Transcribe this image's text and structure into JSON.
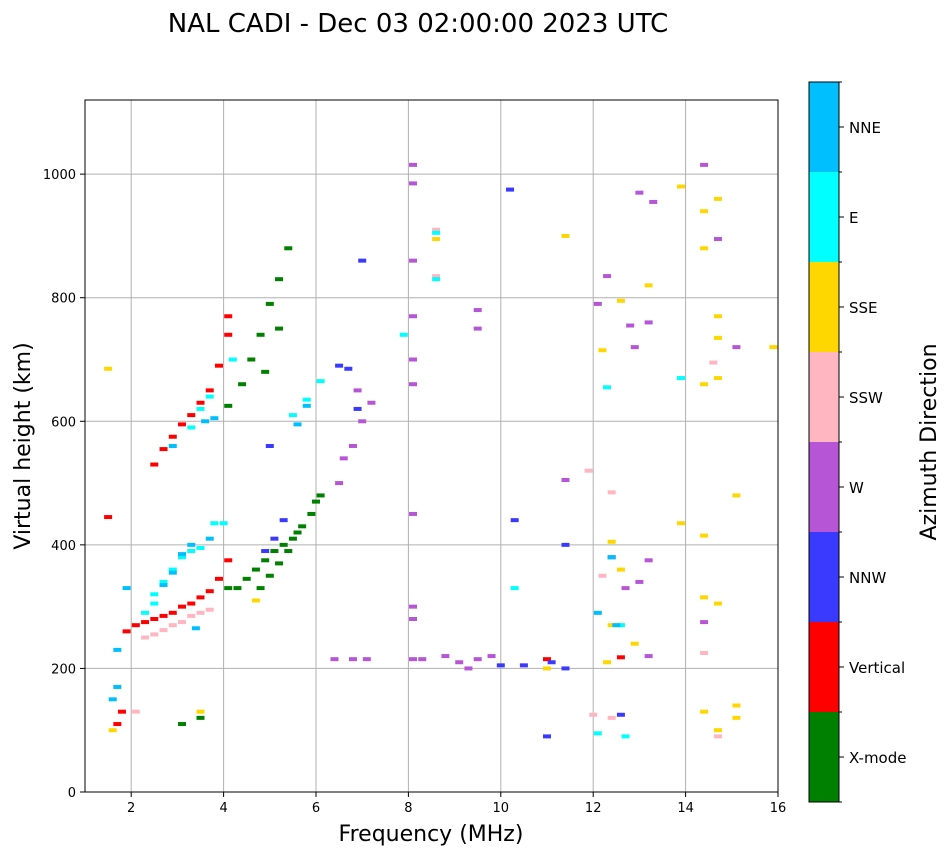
{
  "chart_data": {
    "type": "scatter",
    "title": "NAL CADI - Dec 03 02:00:00 2023 UTC",
    "xlabel": "Frequency (MHz)",
    "ylabel": "Virtual height (km)",
    "xlim": [
      1,
      16
    ],
    "ylim": [
      0,
      1120
    ],
    "xticks": [
      2,
      4,
      6,
      8,
      10,
      12,
      14,
      16
    ],
    "yticks": [
      0,
      200,
      400,
      600,
      800,
      1000
    ],
    "grid": true,
    "colorbar": {
      "label": "Azimuth Direction",
      "categories": [
        "X-mode",
        "Vertical",
        "NNW",
        "W",
        "SSW",
        "SSE",
        "E",
        "NNE"
      ],
      "colors": [
        "#008000",
        "#ff0000",
        "#3a3aff",
        "#b656d6",
        "#ffb6c1",
        "#ffd700",
        "#00ffff",
        "#00bfff"
      ]
    },
    "series": [
      {
        "name": "X-mode",
        "color": "#008000",
        "points": [
          [
            4.1,
            330
          ],
          [
            4.3,
            330
          ],
          [
            4.5,
            345
          ],
          [
            4.7,
            360
          ],
          [
            4.9,
            375
          ],
          [
            5.1,
            390
          ],
          [
            5.3,
            400
          ],
          [
            5.5,
            410
          ],
          [
            5.7,
            430
          ],
          [
            5.9,
            450
          ],
          [
            6.0,
            470
          ],
          [
            6.1,
            480
          ],
          [
            4.1,
            625
          ],
          [
            4.8,
            330
          ],
          [
            5.0,
            350
          ],
          [
            5.2,
            370
          ],
          [
            5.4,
            390
          ],
          [
            5.6,
            420
          ],
          [
            4.4,
            660
          ],
          [
            4.6,
            700
          ],
          [
            4.8,
            740
          ],
          [
            5.0,
            790
          ],
          [
            5.2,
            830
          ],
          [
            5.4,
            880
          ],
          [
            5.2,
            750
          ],
          [
            4.9,
            680
          ],
          [
            3.1,
            110
          ],
          [
            3.5,
            120
          ]
        ]
      },
      {
        "name": "Vertical",
        "color": "#ff0000",
        "points": [
          [
            1.7,
            110
          ],
          [
            1.8,
            130
          ],
          [
            1.9,
            260
          ],
          [
            2.1,
            270
          ],
          [
            2.3,
            275
          ],
          [
            2.5,
            280
          ],
          [
            2.7,
            285
          ],
          [
            2.9,
            290
          ],
          [
            3.1,
            300
          ],
          [
            3.3,
            305
          ],
          [
            3.5,
            315
          ],
          [
            3.7,
            325
          ],
          [
            3.9,
            345
          ],
          [
            4.1,
            375
          ],
          [
            2.5,
            530
          ],
          [
            2.7,
            555
          ],
          [
            2.9,
            575
          ],
          [
            3.1,
            595
          ],
          [
            3.3,
            610
          ],
          [
            3.5,
            630
          ],
          [
            3.7,
            650
          ],
          [
            3.9,
            690
          ],
          [
            4.1,
            740
          ],
          [
            4.1,
            770
          ],
          [
            11.0,
            215
          ],
          [
            12.6,
            218
          ],
          [
            1.5,
            445
          ]
        ]
      },
      {
        "name": "NNW",
        "color": "#3a3aff",
        "points": [
          [
            4.9,
            390
          ],
          [
            5.1,
            410
          ],
          [
            5.3,
            440
          ],
          [
            6.7,
            685
          ],
          [
            6.5,
            690
          ],
          [
            10.0,
            205
          ],
          [
            10.5,
            205
          ],
          [
            11.1,
            210
          ],
          [
            11.4,
            200
          ],
          [
            12.6,
            125
          ],
          [
            11.0,
            90
          ],
          [
            12.4,
            380
          ],
          [
            10.2,
            975
          ],
          [
            10.3,
            440
          ],
          [
            11.4,
            400
          ],
          [
            6.9,
            620
          ],
          [
            5.0,
            560
          ],
          [
            7.0,
            860
          ]
        ]
      },
      {
        "name": "W",
        "color": "#b656d6",
        "points": [
          [
            6.6,
            540
          ],
          [
            6.8,
            560
          ],
          [
            7.0,
            600
          ],
          [
            7.2,
            630
          ],
          [
            6.5,
            500
          ],
          [
            6.9,
            650
          ],
          [
            8.1,
            300
          ],
          [
            8.1,
            280
          ],
          [
            8.1,
            215
          ],
          [
            8.3,
            215
          ],
          [
            8.8,
            220
          ],
          [
            9.1,
            210
          ],
          [
            9.3,
            200
          ],
          [
            9.5,
            215
          ],
          [
            9.8,
            220
          ],
          [
            8.1,
            770
          ],
          [
            8.1,
            700
          ],
          [
            8.1,
            660
          ],
          [
            8.1,
            450
          ],
          [
            8.1,
            860
          ],
          [
            8.1,
            1015
          ],
          [
            8.1,
            985
          ],
          [
            9.5,
            780
          ],
          [
            9.5,
            750
          ],
          [
            12.3,
            835
          ],
          [
            12.8,
            755
          ],
          [
            13.2,
            760
          ],
          [
            13.0,
            970
          ],
          [
            13.3,
            955
          ],
          [
            12.1,
            790
          ],
          [
            12.9,
            720
          ],
          [
            13.2,
            375
          ],
          [
            13.0,
            340
          ],
          [
            12.7,
            330
          ],
          [
            13.2,
            220
          ],
          [
            14.4,
            1015
          ],
          [
            14.7,
            895
          ],
          [
            15.1,
            720
          ],
          [
            14.4,
            275
          ],
          [
            6.4,
            215
          ],
          [
            6.8,
            215
          ],
          [
            7.1,
            215
          ],
          [
            11.4,
            505
          ]
        ]
      },
      {
        "name": "SSW",
        "color": "#ffb6c1",
        "points": [
          [
            2.5,
            255
          ],
          [
            2.7,
            262
          ],
          [
            2.9,
            270
          ],
          [
            3.1,
            275
          ],
          [
            3.3,
            285
          ],
          [
            3.5,
            290
          ],
          [
            3.7,
            295
          ],
          [
            2.3,
            250
          ],
          [
            2.1,
            130
          ],
          [
            8.6,
            910
          ],
          [
            8.6,
            835
          ],
          [
            12.4,
            485
          ],
          [
            12.2,
            350
          ],
          [
            14.6,
            695
          ],
          [
            14.7,
            90
          ],
          [
            12.0,
            125
          ],
          [
            12.4,
            120
          ],
          [
            11.9,
            520
          ],
          [
            14.4,
            225
          ]
        ]
      },
      {
        "name": "SSE",
        "color": "#ffd700",
        "points": [
          [
            1.5,
            685
          ],
          [
            1.6,
            100
          ],
          [
            3.5,
            130
          ],
          [
            4.7,
            310
          ],
          [
            8.6,
            895
          ],
          [
            11.4,
            900
          ],
          [
            11.0,
            200
          ],
          [
            12.2,
            715
          ],
          [
            12.4,
            405
          ],
          [
            12.6,
            795
          ],
          [
            12.6,
            360
          ],
          [
            12.9,
            240
          ],
          [
            12.4,
            270
          ],
          [
            12.3,
            210
          ],
          [
            13.2,
            820
          ],
          [
            13.9,
            980
          ],
          [
            13.9,
            435
          ],
          [
            14.4,
            940
          ],
          [
            14.4,
            880
          ],
          [
            14.4,
            415
          ],
          [
            14.4,
            315
          ],
          [
            14.4,
            130
          ],
          [
            14.7,
            960
          ],
          [
            14.7,
            770
          ],
          [
            14.7,
            735
          ],
          [
            14.7,
            670
          ],
          [
            14.7,
            305
          ],
          [
            14.4,
            660
          ],
          [
            15.1,
            480
          ],
          [
            15.1,
            140
          ],
          [
            15.1,
            120
          ],
          [
            15.9,
            720
          ],
          [
            14.7,
            100
          ]
        ]
      },
      {
        "name": "E",
        "color": "#00ffff",
        "points": [
          [
            2.3,
            290
          ],
          [
            2.5,
            305
          ],
          [
            2.5,
            320
          ],
          [
            2.7,
            340
          ],
          [
            2.9,
            360
          ],
          [
            3.1,
            380
          ],
          [
            3.3,
            390
          ],
          [
            3.5,
            395
          ],
          [
            3.8,
            435
          ],
          [
            4.0,
            435
          ],
          [
            3.3,
            590
          ],
          [
            3.5,
            620
          ],
          [
            3.7,
            640
          ],
          [
            5.5,
            610
          ],
          [
            5.8,
            635
          ],
          [
            6.1,
            665
          ],
          [
            8.6,
            905
          ],
          [
            8.6,
            830
          ],
          [
            10.3,
            330
          ],
          [
            12.3,
            655
          ],
          [
            12.6,
            270
          ],
          [
            12.7,
            90
          ],
          [
            12.1,
            95
          ],
          [
            13.9,
            670
          ],
          [
            4.2,
            700
          ],
          [
            7.9,
            740
          ]
        ]
      },
      {
        "name": "NNE",
        "color": "#00bfff",
        "points": [
          [
            1.6,
            150
          ],
          [
            1.7,
            170
          ],
          [
            1.7,
            230
          ],
          [
            1.9,
            330
          ],
          [
            2.7,
            335
          ],
          [
            2.9,
            355
          ],
          [
            3.1,
            385
          ],
          [
            3.3,
            400
          ],
          [
            3.7,
            410
          ],
          [
            2.9,
            560
          ],
          [
            3.6,
            600
          ],
          [
            3.8,
            605
          ],
          [
            5.6,
            595
          ],
          [
            5.8,
            625
          ],
          [
            12.1,
            290
          ],
          [
            12.4,
            380
          ],
          [
            12.5,
            270
          ],
          [
            3.4,
            265
          ]
        ]
      }
    ]
  }
}
